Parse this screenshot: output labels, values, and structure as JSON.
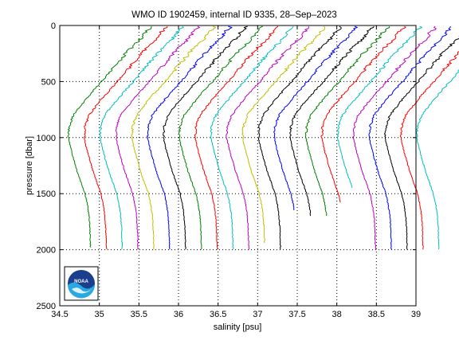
{
  "chart_data": {
    "type": "line",
    "title": "WMO ID 1902459, internal ID 9335, 28–Sep–2023",
    "xlabel": "salinity [psu]",
    "ylabel": "pressure [dbar]",
    "xlim": [
      34.5,
      39
    ],
    "ylim": [
      2500,
      0
    ],
    "y_reversed": true,
    "grid": true,
    "legend": "none",
    "x_ticks": [
      "34.5",
      "35",
      "35.5",
      "36",
      "36.5",
      "37",
      "37.5",
      "38",
      "38.5",
      "39"
    ],
    "y_ticks": [
      "0",
      "500",
      "1000",
      "1500",
      "2000",
      "2500"
    ],
    "logo": "noaa-logo",
    "series": [
      {
        "color": "#008000",
        "offset": 0.0,
        "max_depth": 1980
      },
      {
        "color": "#ff0000",
        "offset": 0.2,
        "max_depth": 2000
      },
      {
        "color": "#00bfbf",
        "offset": 0.4,
        "max_depth": 2000
      },
      {
        "color": "#bf00bf",
        "offset": 0.6,
        "max_depth": 2000
      },
      {
        "color": "#bfbf00",
        "offset": 0.8,
        "max_depth": 2000
      },
      {
        "color": "#0000ff",
        "offset": 1.0,
        "max_depth": 2000
      },
      {
        "color": "#000000",
        "offset": 1.2,
        "max_depth": 2000
      },
      {
        "color": "#008000",
        "offset": 1.4,
        "max_depth": 2000
      },
      {
        "color": "#ff0000",
        "offset": 1.6,
        "max_depth": 2000
      },
      {
        "color": "#00bfbf",
        "offset": 1.8,
        "max_depth": 2000
      },
      {
        "color": "#bf00bf",
        "offset": 2.0,
        "max_depth": 2000
      },
      {
        "color": "#bfbf00",
        "offset": 2.2,
        "max_depth": 1940
      },
      {
        "color": "#000000",
        "offset": 2.4,
        "max_depth": 2000
      },
      {
        "color": "#0000ff",
        "offset": 2.6,
        "max_depth": 1650
      },
      {
        "color": "#000000",
        "offset": 2.8,
        "max_depth": 1700
      },
      {
        "color": "#008000",
        "offset": 3.0,
        "max_depth": 1700
      },
      {
        "color": "#ff0000",
        "offset": 3.2,
        "max_depth": 1580
      },
      {
        "color": "#00bfbf",
        "offset": 3.4,
        "max_depth": 1450
      },
      {
        "color": "#bf00bf",
        "offset": 3.6,
        "max_depth": 2000
      },
      {
        "color": "#0000ff",
        "offset": 3.8,
        "max_depth": 2000
      },
      {
        "color": "#000000",
        "offset": 4.0,
        "max_depth": 2000
      },
      {
        "color": "#ff0000",
        "offset": 4.2,
        "max_depth": 2000
      },
      {
        "color": "#00bfbf",
        "offset": 4.4,
        "max_depth": 2000
      }
    ],
    "base_profile": {
      "pressure": [
        20,
        60,
        100,
        150,
        200,
        300,
        400,
        500,
        600,
        700,
        800,
        900,
        1000,
        1100,
        1200,
        1300,
        1400,
        1500,
        1600,
        1700,
        1800,
        1900,
        2000
      ],
      "salinity": [
        35.65,
        35.58,
        35.55,
        35.48,
        35.4,
        35.27,
        35.15,
        35.03,
        34.9,
        34.78,
        34.67,
        34.62,
        34.61,
        34.64,
        34.68,
        34.72,
        34.77,
        34.82,
        34.85,
        34.87,
        34.88,
        34.885,
        34.89
      ]
    }
  }
}
